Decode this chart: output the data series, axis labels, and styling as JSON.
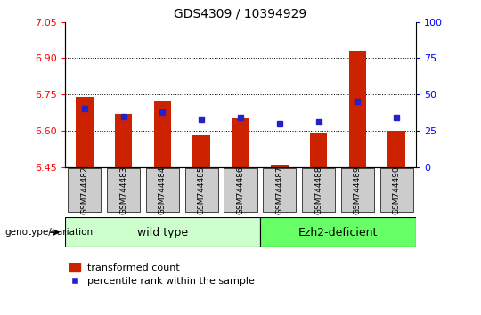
{
  "title": "GDS4309 / 10394929",
  "samples": [
    "GSM744482",
    "GSM744483",
    "GSM744484",
    "GSM744485",
    "GSM744486",
    "GSM744487",
    "GSM744488",
    "GSM744489",
    "GSM744490"
  ],
  "bar_values": [
    6.74,
    6.67,
    6.72,
    6.58,
    6.65,
    6.46,
    6.59,
    6.93,
    6.6
  ],
  "percentile_values": [
    40,
    35,
    38,
    33,
    34,
    30,
    31,
    45,
    34
  ],
  "ylim_left": [
    6.45,
    7.05
  ],
  "ylim_right": [
    0,
    100
  ],
  "yticks_left": [
    6.45,
    6.6,
    6.75,
    6.9,
    7.05
  ],
  "yticks_right": [
    0,
    25,
    50,
    75,
    100
  ],
  "bar_color": "#cc2200",
  "marker_color": "#2222cc",
  "hline_values": [
    6.9,
    6.75,
    6.6
  ],
  "wild_type_count": 5,
  "ezh2_count": 4,
  "wild_type_label": "wild type",
  "ezh2_label": "Ezh2-deficient",
  "legend_bar_label": "transformed count",
  "legend_marker_label": "percentile rank within the sample",
  "genotype_label": "genotype/variation",
  "wild_type_color": "#ccffcc",
  "ezh2_color": "#66ff66",
  "xticklabel_bg": "#cccccc",
  "base_value": 6.45
}
